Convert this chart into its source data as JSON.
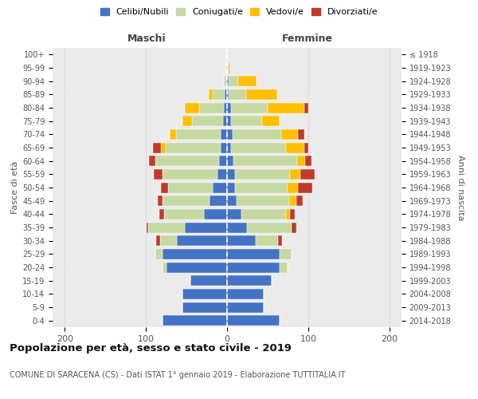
{
  "age_groups": [
    "0-4",
    "5-9",
    "10-14",
    "15-19",
    "20-24",
    "25-29",
    "30-34",
    "35-39",
    "40-44",
    "45-49",
    "50-54",
    "55-59",
    "60-64",
    "65-69",
    "70-74",
    "75-79",
    "80-84",
    "85-89",
    "90-94",
    "95-99",
    "100+"
  ],
  "birth_years": [
    "2014-2018",
    "2009-2013",
    "2004-2008",
    "1999-2003",
    "1994-1998",
    "1989-1993",
    "1984-1988",
    "1979-1983",
    "1974-1978",
    "1969-1973",
    "1964-1968",
    "1959-1963",
    "1954-1958",
    "1949-1953",
    "1944-1948",
    "1939-1943",
    "1934-1938",
    "1929-1933",
    "1924-1928",
    "1919-1923",
    "≤ 1918"
  ],
  "maschi": {
    "celibi": [
      80,
      55,
      55,
      45,
      75,
      80,
      62,
      52,
      28,
      22,
      18,
      12,
      10,
      8,
      8,
      5,
      4,
      3,
      1,
      1,
      1
    ],
    "coniugati": [
      0,
      0,
      0,
      0,
      5,
      8,
      20,
      45,
      50,
      58,
      55,
      68,
      78,
      68,
      55,
      38,
      30,
      15,
      3,
      0,
      0
    ],
    "vedovi": [
      0,
      0,
      0,
      0,
      0,
      0,
      0,
      0,
      0,
      0,
      0,
      0,
      0,
      5,
      8,
      12,
      18,
      5,
      0,
      0,
      0
    ],
    "divorziati": [
      0,
      0,
      0,
      0,
      0,
      0,
      5,
      2,
      5,
      5,
      8,
      10,
      8,
      10,
      0,
      0,
      0,
      0,
      0,
      0,
      0
    ]
  },
  "femmine": {
    "nubili": [
      65,
      45,
      45,
      55,
      65,
      65,
      35,
      25,
      18,
      12,
      10,
      10,
      8,
      5,
      7,
      5,
      5,
      2,
      2,
      0,
      0
    ],
    "coniugate": [
      0,
      0,
      0,
      0,
      10,
      15,
      28,
      55,
      55,
      65,
      65,
      68,
      78,
      68,
      60,
      38,
      45,
      22,
      12,
      2,
      0
    ],
    "vedove": [
      0,
      0,
      0,
      0,
      0,
      0,
      0,
      0,
      5,
      8,
      12,
      12,
      10,
      22,
      20,
      22,
      45,
      38,
      22,
      2,
      0
    ],
    "divorziate": [
      0,
      0,
      0,
      0,
      0,
      0,
      5,
      5,
      5,
      8,
      18,
      18,
      8,
      5,
      8,
      0,
      5,
      0,
      0,
      0,
      0
    ]
  },
  "colors": {
    "celibi_nubili": "#4472c4",
    "coniugati": "#c5d9a0",
    "vedovi": "#ffc000",
    "divorziati": "#c0392b"
  },
  "xlim": [
    -215,
    215
  ],
  "xticks": [
    -200,
    -100,
    0,
    100,
    200
  ],
  "xtick_labels": [
    "200",
    "100",
    "0",
    "100",
    "200"
  ],
  "title": "Popolazione per età, sesso e stato civile - 2019",
  "subtitle": "COMUNE DI SARACENA (CS) - Dati ISTAT 1° gennaio 2019 - Elaborazione TUTTITALIA.IT",
  "ylabel_left": "Fasce di età",
  "ylabel_right": "Anni di nascita",
  "maschi_label": "Maschi",
  "femmine_label": "Femmine",
  "legend_labels": [
    "Celibi/Nubili",
    "Coniugati/e",
    "Vedovi/e",
    "Divorziati/e"
  ],
  "background_color": "#ffffff",
  "plot_bg_color": "#ebebeb",
  "grid_color": "#cccccc"
}
